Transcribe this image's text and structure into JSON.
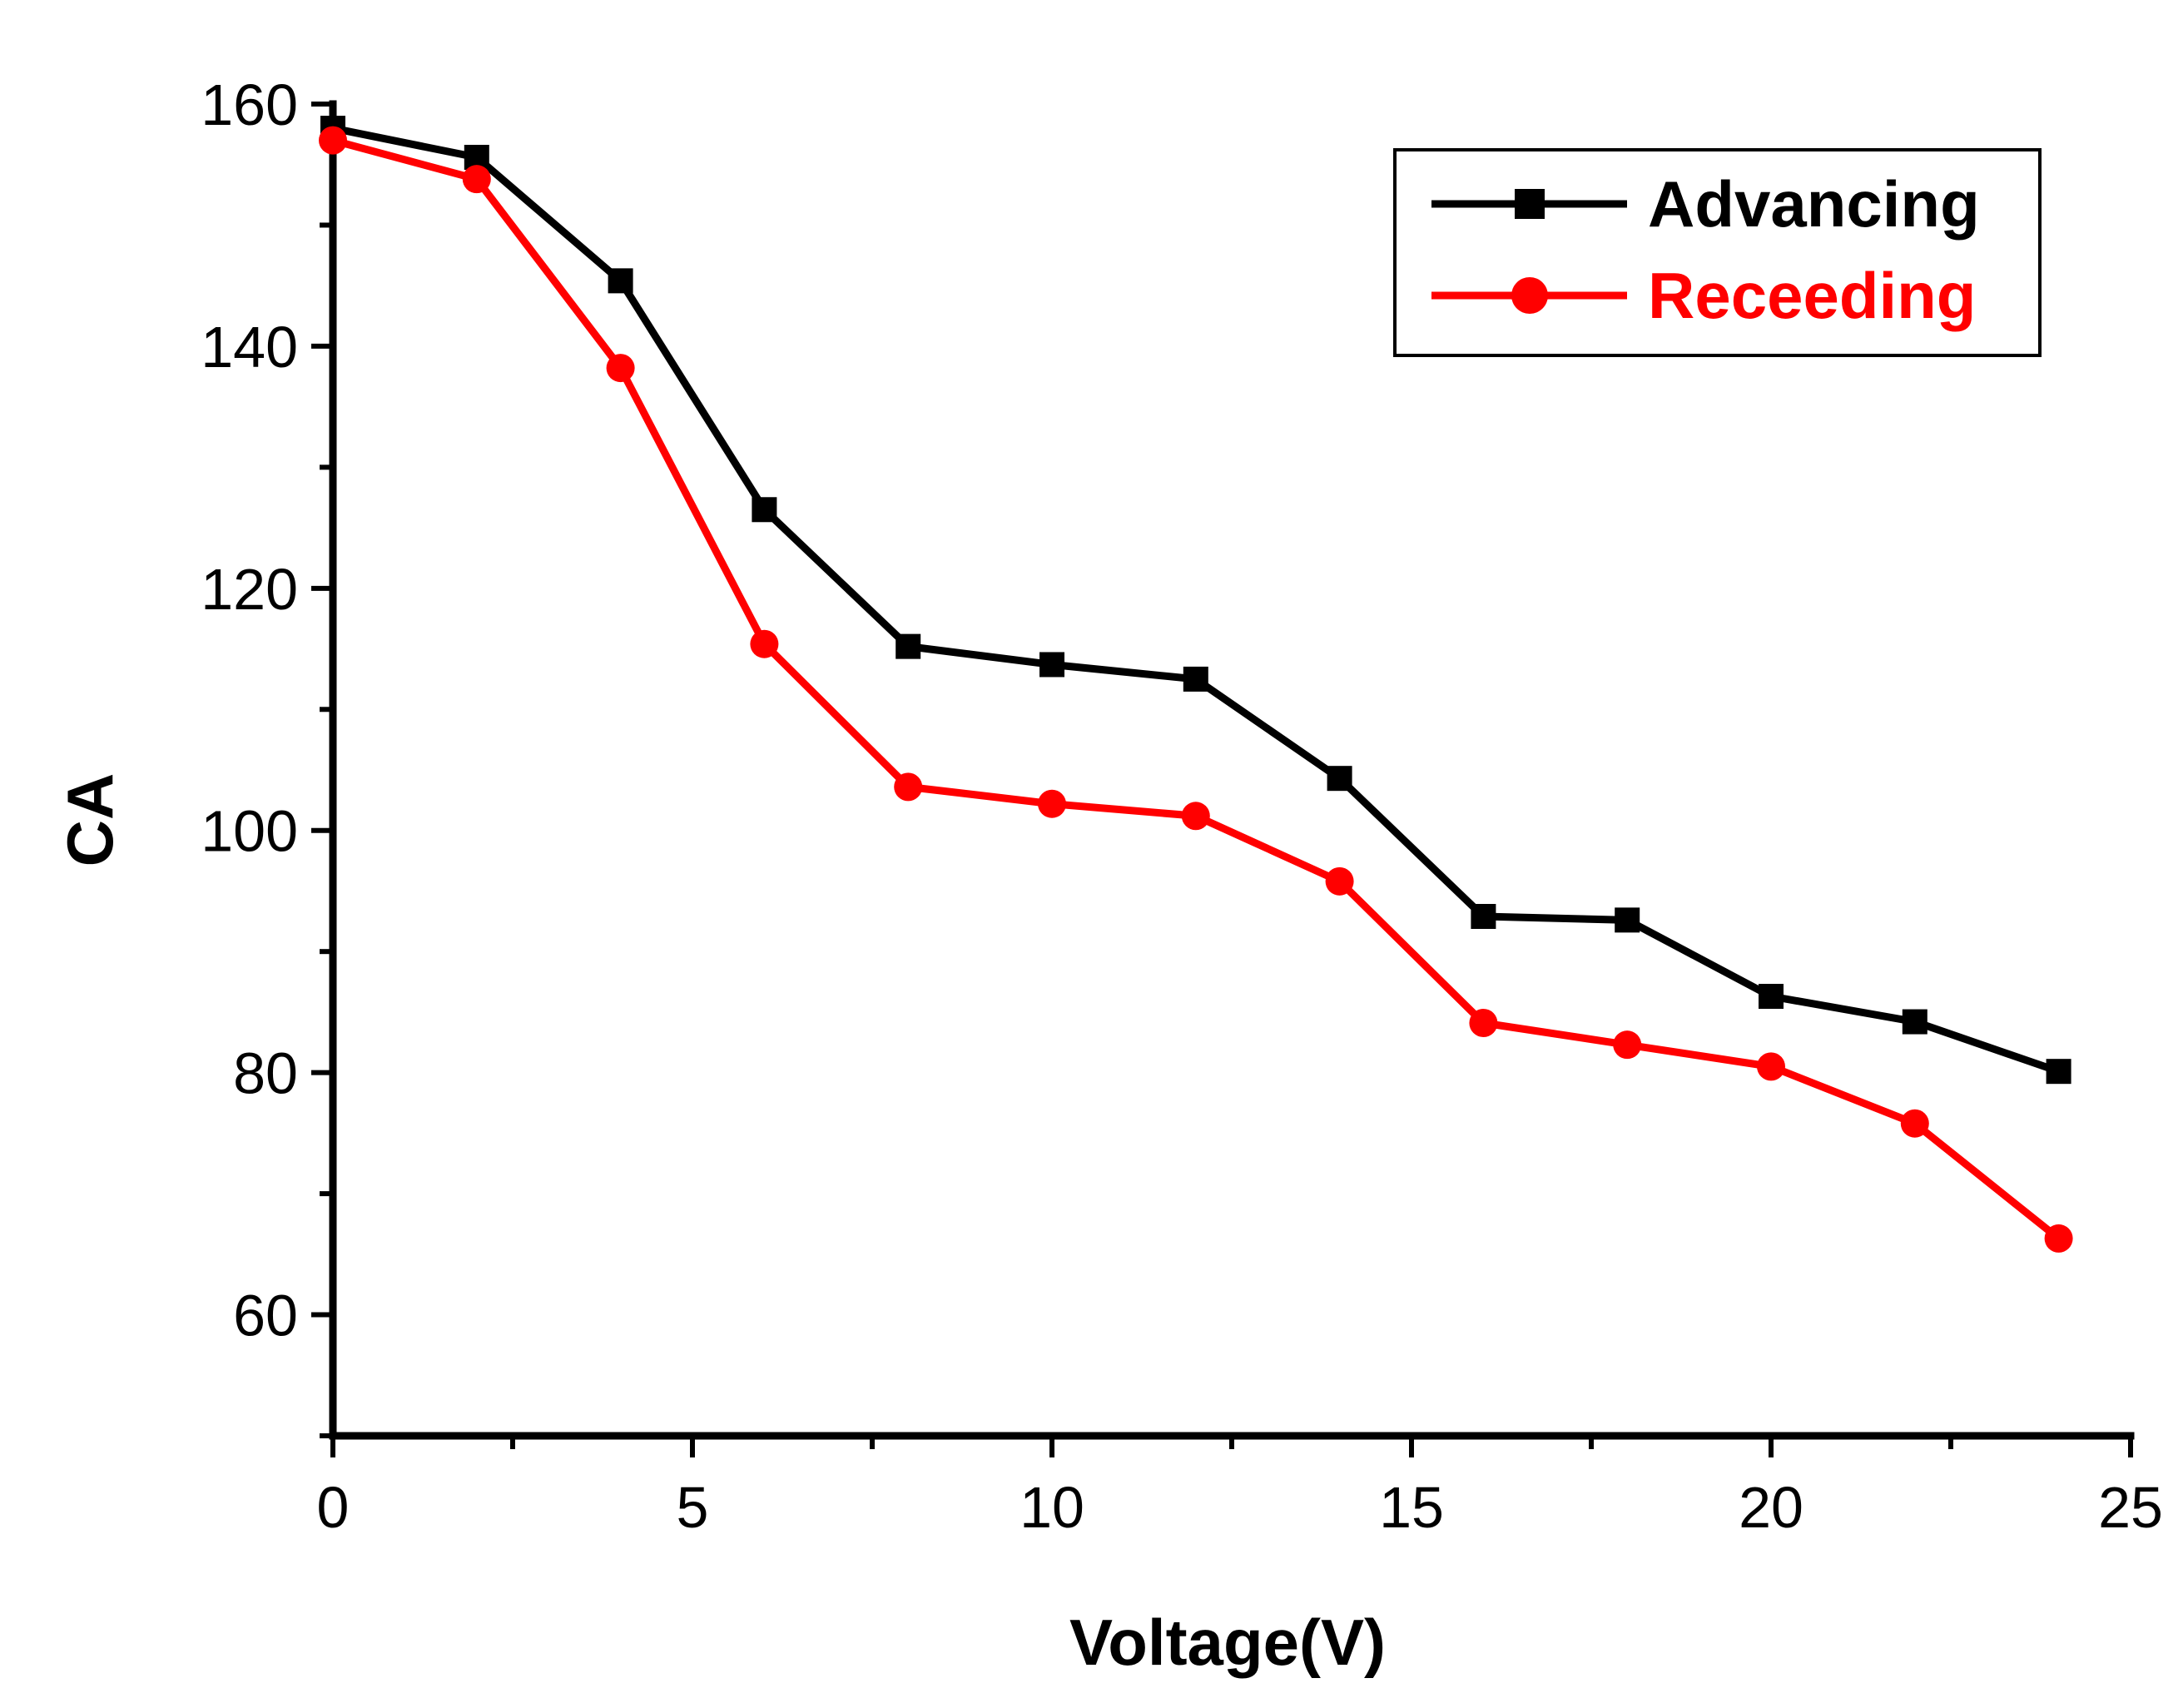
{
  "chart_data": {
    "type": "line",
    "xlabel": "Voltage(V)",
    "ylabel": "CA",
    "xlim": [
      0,
      25
    ],
    "ylim": [
      50,
      160
    ],
    "x_ticks": [
      0,
      5,
      10,
      15,
      20,
      25
    ],
    "y_ticks": [
      60,
      80,
      100,
      120,
      140,
      160
    ],
    "grid": false,
    "legend_position": "top-right",
    "x": [
      0,
      2,
      4,
      6,
      8,
      10,
      12,
      14,
      16,
      18,
      20,
      22,
      24
    ],
    "series": [
      {
        "name": "Advancing",
        "color": "#000000",
        "marker": "square",
        "values": [
          158,
          155.6,
          145.4,
          126.5,
          115.2,
          113.7,
          112.5,
          104.3,
          92.9,
          92.6,
          86.3,
          84.2,
          80.1
        ]
      },
      {
        "name": "Receeding",
        "color": "#ff0000",
        "marker": "circle",
        "values": [
          157,
          153.8,
          138.2,
          115.4,
          103.6,
          102.2,
          101.2,
          95.8,
          84.1,
          82.3,
          80.5,
          75.8,
          66.3
        ]
      }
    ]
  }
}
